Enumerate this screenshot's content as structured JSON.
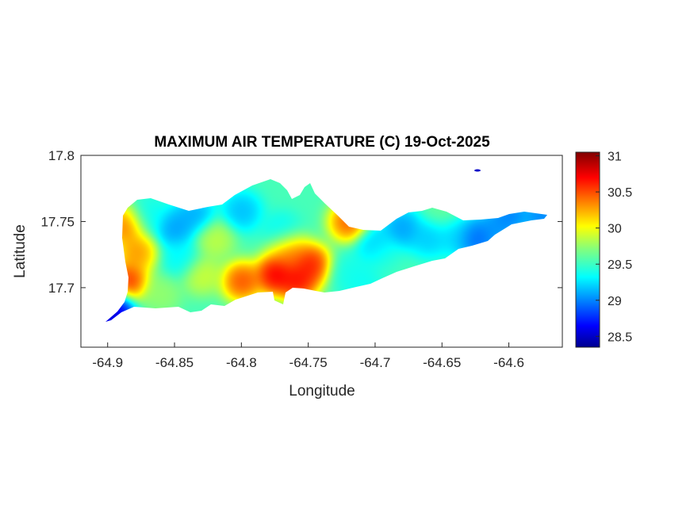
{
  "figure": {
    "title": "MAXIMUM AIR TEMPERATURE (C) 19-Oct-2025",
    "xlabel": "Longitude",
    "ylabel": "Latitude"
  },
  "axes": {
    "xlim": [
      -64.92,
      -64.56
    ],
    "ylim": [
      17.655,
      17.8
    ],
    "xticks": [
      -64.9,
      -64.85,
      -64.8,
      -64.75,
      -64.7,
      -64.65,
      -64.6
    ],
    "xtick_labels": [
      "-64.9",
      "-64.85",
      "-64.8",
      "-64.75",
      "-64.7",
      "-64.65",
      "-64.6"
    ],
    "yticks": [
      17.8,
      17.75,
      17.7
    ],
    "ytick_labels": [
      "17.8",
      "17.75",
      "17.7"
    ]
  },
  "colorbar": {
    "colormap": "jet",
    "range": [
      28.35,
      31.05
    ],
    "ticks": [
      31,
      30.5,
      30,
      29.5,
      29,
      28.5
    ],
    "tick_labels": [
      "31",
      "30.5",
      "30",
      "29.5",
      "29",
      "28.5"
    ]
  },
  "chart_data": {
    "type": "heatmap",
    "title": "MAXIMUM AIR TEMPERATURE (C) 19-Oct-2025",
    "xlabel": "Longitude",
    "ylabel": "Latitude",
    "value_unit": "C",
    "xlim": [
      -64.92,
      -64.56
    ],
    "ylim": [
      17.655,
      17.8
    ],
    "color_range": [
      28.35,
      31.05
    ],
    "base_value": 29.55,
    "grid": false,
    "features": [
      {
        "lon": -64.885,
        "lat": 17.705,
        "value": 30.85
      },
      {
        "lon": -64.887,
        "lat": 17.747,
        "value": 30.6
      },
      {
        "lon": -64.878,
        "lat": 17.727,
        "value": 30.5
      },
      {
        "lon": -64.8,
        "lat": 17.705,
        "value": 30.75
      },
      {
        "lon": -64.775,
        "lat": 17.71,
        "value": 31.05
      },
      {
        "lon": -64.758,
        "lat": 17.705,
        "value": 30.95
      },
      {
        "lon": -64.765,
        "lat": 17.728,
        "value": 30.6
      },
      {
        "lon": -64.748,
        "lat": 17.718,
        "value": 30.9
      },
      {
        "lon": -64.72,
        "lat": 17.75,
        "value": 30.7
      },
      {
        "lon": -64.85,
        "lat": 17.745,
        "value": 29.0
      },
      {
        "lon": -64.835,
        "lat": 17.755,
        "value": 29.05
      },
      {
        "lon": -64.8,
        "lat": 17.758,
        "value": 29.1
      },
      {
        "lon": -64.77,
        "lat": 17.742,
        "value": 29.3
      },
      {
        "lon": -64.845,
        "lat": 17.722,
        "value": 29.3
      },
      {
        "lon": -64.87,
        "lat": 17.755,
        "value": 29.35
      },
      {
        "lon": -64.895,
        "lat": 17.684,
        "value": 28.5
      },
      {
        "lon": -64.9,
        "lat": 17.68,
        "value": 28.35
      },
      {
        "lon": -64.68,
        "lat": 17.745,
        "value": 29.0
      },
      {
        "lon": -64.7,
        "lat": 17.732,
        "value": 29.1
      },
      {
        "lon": -64.66,
        "lat": 17.738,
        "value": 29.15
      },
      {
        "lon": -64.625,
        "lat": 17.737,
        "value": 28.8
      },
      {
        "lon": -64.61,
        "lat": 17.745,
        "value": 29.0
      },
      {
        "lon": -64.6,
        "lat": 17.755,
        "value": 28.9
      },
      {
        "lon": -64.575,
        "lat": 17.754,
        "value": 28.9
      },
      {
        "lon": -64.64,
        "lat": 17.74,
        "value": 29.2
      },
      {
        "lon": -64.82,
        "lat": 17.737,
        "value": 29.95
      },
      {
        "lon": -64.83,
        "lat": 17.71,
        "value": 30.0
      },
      {
        "lon": -64.86,
        "lat": 17.695,
        "value": 29.8
      },
      {
        "lon": -64.72,
        "lat": 17.712,
        "value": 29.4
      },
      {
        "lon": -64.695,
        "lat": 17.725,
        "value": 29.5
      },
      {
        "lon": -64.65,
        "lat": 17.758,
        "value": 29.65
      },
      {
        "lon": -64.71,
        "lat": 17.705,
        "value": 29.35
      }
    ]
  }
}
